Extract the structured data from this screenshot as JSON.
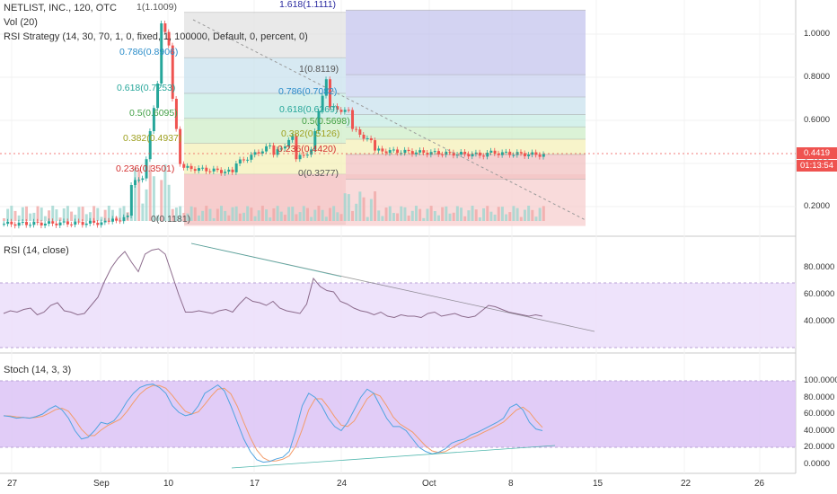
{
  "header": {
    "symbol_line": "NETLIST, INC., 120, OTC",
    "vol_line": "Vol (20)",
    "strategy_line": "RSI Strategy (14, 30, 70, 1, 0, fixed, 1, 100000, Default, 0, percent, 0)"
  },
  "fib_left": {
    "labels": [
      {
        "text": "1(1.1009)",
        "level": 1.1009,
        "color": "#555555"
      },
      {
        "text": "0.786(0.8906)",
        "level": 0.8906,
        "color": "#2a8cc9"
      },
      {
        "text": "0.618(0.7253)",
        "level": 0.7253,
        "color": "#26a69a"
      },
      {
        "text": "0.5(0.6095)",
        "level": 0.6095,
        "color": "#43a047"
      },
      {
        "text": "0.382(0.4937)",
        "level": 0.4937,
        "color": "#9ea020"
      },
      {
        "text": "0.236(0.3501)",
        "level": 0.3501,
        "color": "#d32f2f"
      },
      {
        "text": "0(0.1181)",
        "level": 0.1181,
        "color": "#555555"
      }
    ]
  },
  "fib_right": {
    "labels": [
      {
        "text": "1.618(1.1111)",
        "level": 1.1111,
        "color": "#2a2aa0"
      },
      {
        "text": "1(0.8119)",
        "level": 0.8119,
        "color": "#555555"
      },
      {
        "text": "0.786(0.7082)",
        "level": 0.7082,
        "color": "#2a8cc9"
      },
      {
        "text": "0.618(0.6269)",
        "level": 0.6269,
        "color": "#26a69a"
      },
      {
        "text": "0.5(0.5698)",
        "level": 0.5698,
        "color": "#43a047"
      },
      {
        "text": "0.382(0.5126)",
        "level": 0.5126,
        "color": "#9ea020"
      },
      {
        "text": "0.236(0.4420)",
        "level": 0.442,
        "color": "#d32f2f"
      },
      {
        "text": "0(0.3277)",
        "level": 0.3277,
        "color": "#555555"
      }
    ]
  },
  "price_axis": {
    "ticks": [
      "1.0000",
      "0.8000",
      "0.6000",
      "0.4000",
      "0.2000"
    ],
    "tick_values": [
      1.0,
      0.8,
      0.6,
      0.4,
      0.2
    ],
    "last_price": "0.4419",
    "countdown": "01:13:54",
    "last_price_value": 0.4419
  },
  "rsi": {
    "title": "RSI (14, close)",
    "ticks": [
      "80.0000",
      "60.0000",
      "40.0000"
    ],
    "tick_values": [
      80,
      60,
      40
    ]
  },
  "stoch": {
    "title": "Stoch (14, 3, 3)",
    "ticks": [
      "100.0000",
      "80.0000",
      "60.0000",
      "40.0000",
      "20.0000",
      "0.0000"
    ],
    "tick_values": [
      100,
      80,
      60,
      40,
      20,
      0
    ]
  },
  "time_axis": {
    "labels": [
      "27",
      "Sep",
      "10",
      "17",
      "24",
      "Oct",
      "8",
      "15",
      "22",
      "26"
    ]
  },
  "colors": {
    "up": "#26a69a",
    "down": "#ef5350",
    "rsi_line": "#8c6b8c",
    "stoch_k": "#4fa3e0",
    "stoch_d": "#f39c6b",
    "band": "#e5d5f7"
  }
}
